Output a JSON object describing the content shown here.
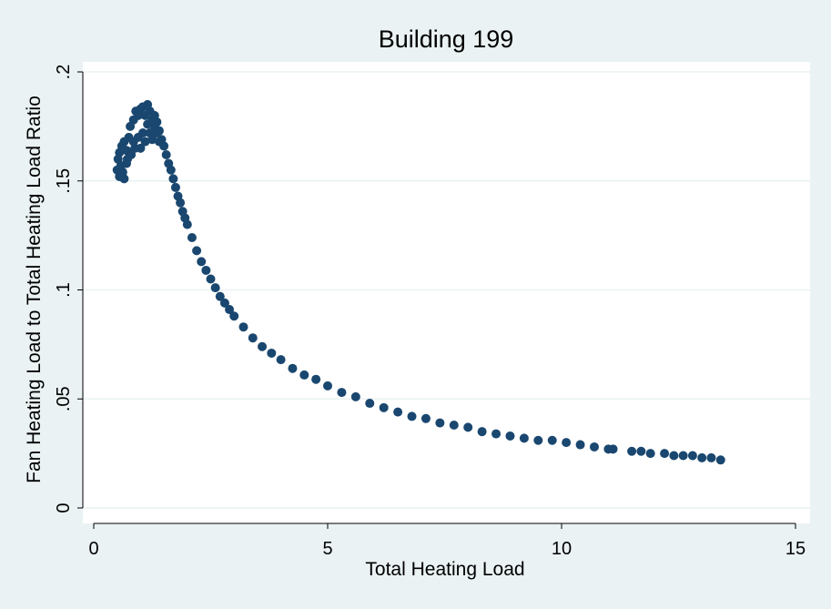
{
  "chart_data": {
    "type": "scatter",
    "title": "Building 199",
    "xlabel": "Total Heating Load",
    "ylabel": "Fan Heating Load to Total Heating Load Ratio",
    "xlim": [
      0,
      15
    ],
    "ylim": [
      0,
      0.2
    ],
    "xticks": [
      0,
      5,
      10,
      15
    ],
    "xtick_labels": [
      "0",
      "5",
      "10",
      "15"
    ],
    "yticks": [
      0,
      0.05,
      0.1,
      0.15,
      0.2
    ],
    "ytick_labels": [
      "0",
      ".05",
      ".1",
      ".15",
      ".2"
    ],
    "grid": true,
    "legend": "none",
    "series": [
      {
        "x": [
          0.5,
          0.52,
          0.55,
          0.55,
          0.58,
          0.6,
          0.62,
          0.65,
          0.65,
          0.7,
          0.7,
          0.72,
          0.75,
          0.78,
          0.8,
          0.85,
          0.85,
          0.88,
          0.9,
          0.95,
          0.95,
          1.0,
          1.0,
          1.05,
          1.05,
          1.1,
          1.1,
          1.15,
          1.15,
          1.2,
          1.2,
          1.25,
          1.25,
          1.3,
          1.3,
          1.35,
          1.35,
          1.4,
          1.4,
          1.45,
          1.5,
          1.55,
          1.6,
          1.65,
          1.7,
          1.75,
          1.8,
          1.85,
          1.9,
          1.95,
          2.0,
          2.1,
          2.2,
          2.3,
          2.4,
          2.5,
          2.6,
          2.7,
          2.8,
          2.9,
          3.0,
          3.2,
          3.4,
          3.6,
          3.8,
          4.0,
          4.25,
          4.5,
          4.75,
          5.0,
          5.3,
          5.6,
          5.9,
          6.2,
          6.5,
          6.8,
          7.1,
          7.4,
          7.7,
          8.0,
          8.3,
          8.6,
          8.9,
          9.2,
          9.5,
          9.8,
          10.1,
          10.4,
          10.7,
          11.0,
          11.1,
          11.5,
          11.7,
          11.9,
          12.2,
          12.4,
          12.6,
          12.8,
          13.0,
          13.2,
          13.4
        ],
        "y": [
          0.155,
          0.16,
          0.152,
          0.163,
          0.157,
          0.166,
          0.154,
          0.151,
          0.168,
          0.158,
          0.164,
          0.16,
          0.17,
          0.175,
          0.162,
          0.168,
          0.178,
          0.165,
          0.182,
          0.17,
          0.18,
          0.183,
          0.165,
          0.172,
          0.184,
          0.168,
          0.18,
          0.176,
          0.185,
          0.172,
          0.182,
          0.169,
          0.178,
          0.175,
          0.18,
          0.172,
          0.177,
          0.168,
          0.173,
          0.169,
          0.166,
          0.162,
          0.158,
          0.155,
          0.151,
          0.147,
          0.143,
          0.14,
          0.136,
          0.133,
          0.13,
          0.124,
          0.118,
          0.113,
          0.109,
          0.105,
          0.101,
          0.097,
          0.094,
          0.091,
          0.088,
          0.083,
          0.078,
          0.074,
          0.071,
          0.068,
          0.064,
          0.061,
          0.059,
          0.056,
          0.053,
          0.051,
          0.048,
          0.046,
          0.044,
          0.042,
          0.041,
          0.039,
          0.038,
          0.037,
          0.035,
          0.034,
          0.033,
          0.032,
          0.031,
          0.031,
          0.03,
          0.029,
          0.028,
          0.027,
          0.027,
          0.026,
          0.026,
          0.025,
          0.025,
          0.024,
          0.024,
          0.024,
          0.023,
          0.023,
          0.022
        ],
        "color": "#1a476f"
      }
    ]
  },
  "colors": {
    "outer_background": "#eaf2f3",
    "plot_background": "#ffffff",
    "gridline": "#eaf2f3",
    "marker": "#1a476f",
    "title": "#1e2d4f"
  }
}
